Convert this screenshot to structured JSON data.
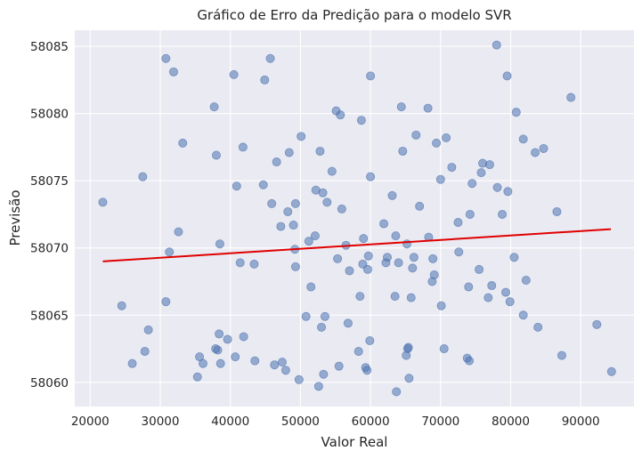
{
  "chart_data": {
    "type": "scatter",
    "title": "Gráfico de Erro da Predição para o modelo SVR",
    "xlabel": "Valor Real",
    "ylabel": "Previsão",
    "xlim": [
      17800,
      97600
    ],
    "ylim": [
      58058.2,
      58086.2
    ],
    "xticks": [
      20000,
      30000,
      40000,
      50000,
      60000,
      70000,
      80000,
      90000
    ],
    "yticks": [
      58060,
      58065,
      58070,
      58075,
      58080,
      58085
    ],
    "grid": true,
    "background_color": "#EAEAF2",
    "point_color": "#4C72B0",
    "line_color": "#E00000",
    "points": [
      [
        21800,
        58073.4
      ],
      [
        24500,
        58065.7
      ],
      [
        26000,
        58061.4
      ],
      [
        27500,
        58075.3
      ],
      [
        27800,
        58062.3
      ],
      [
        28300,
        58063.9
      ],
      [
        30800,
        58084.1
      ],
      [
        30800,
        58066.0
      ],
      [
        31300,
        58069.7
      ],
      [
        31900,
        58083.1
      ],
      [
        32600,
        58071.2
      ],
      [
        33200,
        58077.8
      ],
      [
        35300,
        58060.4
      ],
      [
        35600,
        58061.9
      ],
      [
        36100,
        58061.4
      ],
      [
        37700,
        58080.5
      ],
      [
        37900,
        58062.5
      ],
      [
        38000,
        58076.9
      ],
      [
        38200,
        58062.4
      ],
      [
        38400,
        58063.6
      ],
      [
        38500,
        58070.3
      ],
      [
        38600,
        58061.4
      ],
      [
        39600,
        58063.2
      ],
      [
        40500,
        58082.9
      ],
      [
        40700,
        58061.9
      ],
      [
        40900,
        58074.6
      ],
      [
        41400,
        58068.9
      ],
      [
        41800,
        58077.5
      ],
      [
        41900,
        58063.4
      ],
      [
        43400,
        58068.8
      ],
      [
        43500,
        58061.6
      ],
      [
        44700,
        58074.7
      ],
      [
        44900,
        58082.5
      ],
      [
        45700,
        58084.1
      ],
      [
        45900,
        58073.3
      ],
      [
        46300,
        58061.3
      ],
      [
        46600,
        58076.4
      ],
      [
        47200,
        58071.6
      ],
      [
        47400,
        58061.5
      ],
      [
        47900,
        58060.9
      ],
      [
        48200,
        58072.7
      ],
      [
        48400,
        58077.1
      ],
      [
        49000,
        58071.7
      ],
      [
        49200,
        58069.9
      ],
      [
        49300,
        58068.6
      ],
      [
        49300,
        58073.3
      ],
      [
        49800,
        58060.2
      ],
      [
        50100,
        58078.3
      ],
      [
        50800,
        58064.9
      ],
      [
        51200,
        58070.5
      ],
      [
        51500,
        58067.1
      ],
      [
        52100,
        58070.9
      ],
      [
        52200,
        58074.3
      ],
      [
        52600,
        58059.7
      ],
      [
        52800,
        58077.2
      ],
      [
        53000,
        58064.1
      ],
      [
        53200,
        58074.1
      ],
      [
        53300,
        58060.6
      ],
      [
        53500,
        58064.9
      ],
      [
        53800,
        58073.4
      ],
      [
        54500,
        58075.7
      ],
      [
        55100,
        58080.2
      ],
      [
        55300,
        58069.2
      ],
      [
        55500,
        58061.2
      ],
      [
        55700,
        58079.9
      ],
      [
        55900,
        58072.9
      ],
      [
        56500,
        58070.2
      ],
      [
        56800,
        58064.4
      ],
      [
        57000,
        58068.3
      ],
      [
        58300,
        58062.3
      ],
      [
        58500,
        58066.4
      ],
      [
        58700,
        58079.5
      ],
      [
        58900,
        58068.8
      ],
      [
        59000,
        58070.7
      ],
      [
        59300,
        58061.1
      ],
      [
        59500,
        58060.9
      ],
      [
        59600,
        58068.4
      ],
      [
        59700,
        58069.4
      ],
      [
        59900,
        58063.1
      ],
      [
        60000,
        58075.3
      ],
      [
        60000,
        58082.8
      ],
      [
        61900,
        58071.8
      ],
      [
        62200,
        58068.9
      ],
      [
        62400,
        58069.3
      ],
      [
        63100,
        58073.9
      ],
      [
        63500,
        58066.4
      ],
      [
        63600,
        58070.9
      ],
      [
        63700,
        58059.3
      ],
      [
        64000,
        58068.9
      ],
      [
        64400,
        58080.5
      ],
      [
        64600,
        58077.2
      ],
      [
        65100,
        58062.0
      ],
      [
        65200,
        58070.3
      ],
      [
        65300,
        58062.5
      ],
      [
        65400,
        58062.6
      ],
      [
        65500,
        58060.3
      ],
      [
        65800,
        58066.3
      ],
      [
        66000,
        58068.5
      ],
      [
        66200,
        58069.3
      ],
      [
        66500,
        58078.4
      ],
      [
        67000,
        58073.1
      ],
      [
        68200,
        58080.4
      ],
      [
        68300,
        58070.8
      ],
      [
        68800,
        58067.5
      ],
      [
        68900,
        58069.2
      ],
      [
        69100,
        58068.0
      ],
      [
        69400,
        58077.8
      ],
      [
        70000,
        58075.1
      ],
      [
        70100,
        58065.7
      ],
      [
        70500,
        58062.5
      ],
      [
        70800,
        58078.2
      ],
      [
        71600,
        58076.0
      ],
      [
        72500,
        58071.9
      ],
      [
        72600,
        58069.7
      ],
      [
        73800,
        58061.8
      ],
      [
        74000,
        58067.1
      ],
      [
        74100,
        58061.6
      ],
      [
        74200,
        58072.5
      ],
      [
        74500,
        58074.8
      ],
      [
        75500,
        58068.4
      ],
      [
        75800,
        58075.6
      ],
      [
        76000,
        58076.3
      ],
      [
        76800,
        58066.3
      ],
      [
        77000,
        58076.2
      ],
      [
        77300,
        58067.2
      ],
      [
        78000,
        58085.1
      ],
      [
        78100,
        58074.5
      ],
      [
        78800,
        58072.5
      ],
      [
        79300,
        58066.7
      ],
      [
        79500,
        58082.8
      ],
      [
        79600,
        58074.2
      ],
      [
        79900,
        58066.0
      ],
      [
        80500,
        58069.3
      ],
      [
        80800,
        58080.1
      ],
      [
        81800,
        58065.0
      ],
      [
        81800,
        58078.1
      ],
      [
        82200,
        58067.6
      ],
      [
        83500,
        58077.1
      ],
      [
        83900,
        58064.1
      ],
      [
        84700,
        58077.4
      ],
      [
        86600,
        58072.7
      ],
      [
        87300,
        58062.0
      ],
      [
        88600,
        58081.2
      ],
      [
        92300,
        58064.3
      ],
      [
        94400,
        58060.8
      ]
    ],
    "fit_line": [
      [
        21800,
        58069.0
      ],
      [
        94300,
        58071.4
      ]
    ]
  }
}
